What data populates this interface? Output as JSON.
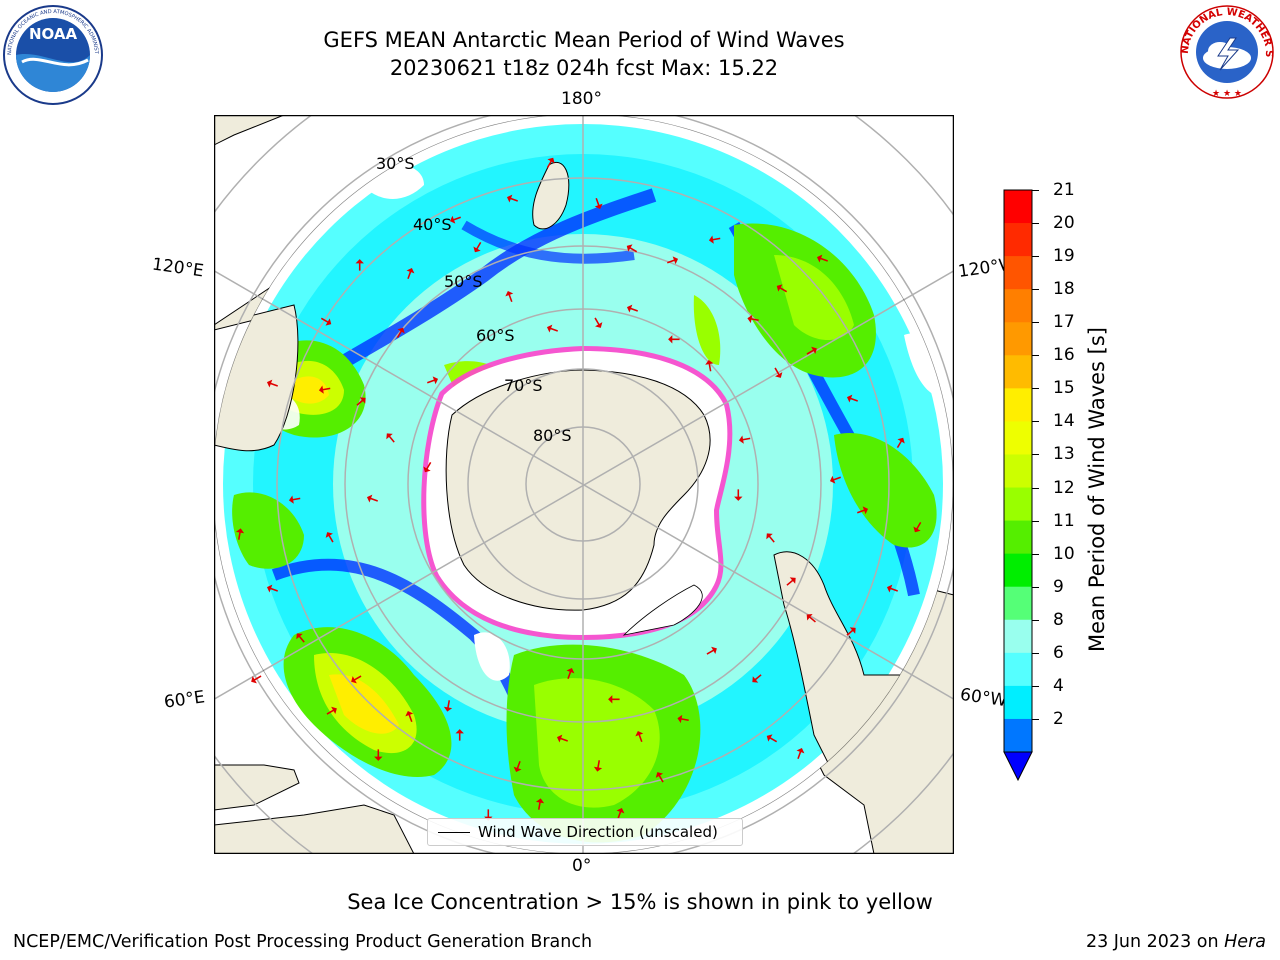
{
  "title": {
    "line1": "GEFS MEAN Antarctic Mean Period of Wind Waves",
    "line2": "20230621 t18z 024h fcst   Max: 15.22"
  },
  "logos": {
    "noaa": {
      "text": "NOAA",
      "ring_text": "NATIONAL OCEANIC AND ATMOSPHERIC ADMINISTRATION · U.S. DEPARTMENT OF COMMERCE"
    },
    "nws": {
      "ring_text": "NATIONAL WEATHER SERVICE"
    }
  },
  "map": {
    "longitude_labels": {
      "top": "180°",
      "bottom": "0°",
      "left_upper": "120°E",
      "left_lower": "60°E",
      "right_upper": "120°W",
      "right_lower": "60°W"
    },
    "latitude_labels": [
      "30°S",
      "40°S",
      "50°S",
      "60°S",
      "70°S",
      "80°S"
    ],
    "legend": "Wind Wave Direction (unscaled)"
  },
  "colorbar": {
    "label": "Mean Period of Wind Waves [s]",
    "ticks": [
      "21",
      "20",
      "19",
      "18",
      "17",
      "16",
      "15",
      "14",
      "13",
      "12",
      "11",
      "10",
      "9",
      "8",
      "6",
      "4",
      "2"
    ],
    "colors_top_to_bottom": [
      "#ff0000",
      "#ff2a00",
      "#ff5500",
      "#ff7f00",
      "#ff9900",
      "#ffbb00",
      "#ffee00",
      "#eeff00",
      "#ccff00",
      "#99ff00",
      "#55ee00",
      "#00ee00",
      "#55ff77",
      "#99ffee",
      "#55ffff",
      "#00eeff",
      "#0077ff"
    ],
    "extend_color": "#0000ff"
  },
  "caption": "Sea Ice Concentration > 15% is shown in pink to yellow",
  "footer": {
    "left": "NCEP/EMC/Verification Post Processing Product Generation Branch",
    "right_date": "23 Jun 2023 on ",
    "right_machine": "Hera"
  }
}
